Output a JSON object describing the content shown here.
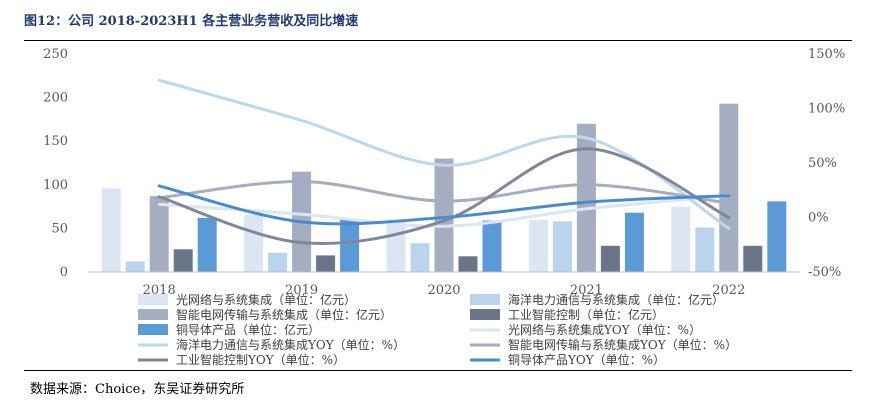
{
  "figure": {
    "title": "图12：公司 2018-2023H1 各主营业务营收及同比增速",
    "source": "数据来源：Choice，东吴证券研究所"
  },
  "chart_data": {
    "type": "bar",
    "categories": [
      "2018",
      "2019",
      "2020",
      "2021",
      "2022"
    ],
    "y_left": {
      "min": 0,
      "max": 250,
      "ticks": [
        "0",
        "50",
        "100",
        "150",
        "200",
        "250"
      ]
    },
    "y_right": {
      "min": -50,
      "max": 150,
      "ticks": [
        "-50%",
        "0%",
        "50%",
        "100%",
        "150%"
      ]
    },
    "grid": false,
    "legend_position": "bottom",
    "bar_series": [
      {
        "name": "光网络与系统集成（单位：亿元）",
        "color": "#dce6f2",
        "values": [
          96,
          66,
          60,
          60,
          75
        ]
      },
      {
        "name": "海洋电力通信与系统集成（单位：亿元）",
        "color": "#b9d4ec",
        "values": [
          12,
          22,
          33,
          58,
          51
        ]
      },
      {
        "name": "智能电网传输与系统集成（单位：亿元）",
        "color": "#a5adc0",
        "values": [
          87,
          115,
          130,
          170,
          193
        ]
      },
      {
        "name": "工业智能控制（单位：亿元）",
        "color": "#6a7589",
        "values": [
          26,
          19,
          18,
          30,
          30
        ]
      },
      {
        "name": "铜导体产品（单位：亿元）",
        "color": "#5b9bd5",
        "values": [
          62,
          60,
          59,
          68,
          81
        ]
      }
    ],
    "line_series": [
      {
        "name": "光网络与系统集成YOY（单位：%）",
        "color": "#dce6f2",
        "values": [
          12,
          3,
          -8,
          8,
          20
        ]
      },
      {
        "name": "海洋电力通信与系统集成YOY（单位：%）",
        "color": "#bdd7ee",
        "values": [
          126,
          89,
          48,
          73,
          -10
        ]
      },
      {
        "name": "智能电网传输与系统集成YOY（单位：%）",
        "color": "#a5adc0",
        "values": [
          18,
          33,
          15,
          30,
          13
        ]
      },
      {
        "name": "工业智能控制YOY（单位：%）",
        "color": "#7f8799",
        "values": [
          19,
          -23,
          -3,
          63,
          0
        ]
      },
      {
        "name": "铜导体产品YOY（单位：%）",
        "color": "#4a8bd0",
        "values": [
          29,
          -4,
          0,
          14,
          20
        ]
      }
    ]
  }
}
